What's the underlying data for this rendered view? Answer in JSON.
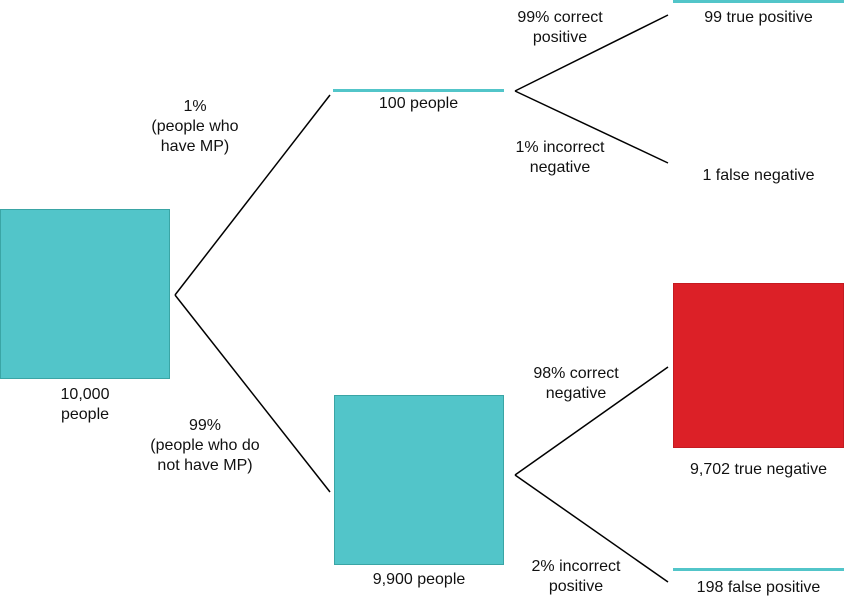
{
  "colors": {
    "teal": "#52c5c9",
    "red": "#dc2027",
    "line": "#000000"
  },
  "root": {
    "label": [
      "10,000",
      "people"
    ]
  },
  "branch_mp": {
    "edge_label": [
      "1%",
      "(people who",
      "have MP)"
    ],
    "node_label": "100 people",
    "positive": {
      "edge_label": [
        "99% correct",
        "positive"
      ],
      "result": "99 true positive"
    },
    "negative": {
      "edge_label": [
        "1% incorrect",
        "negative"
      ],
      "result": "1 false negative"
    }
  },
  "branch_no_mp": {
    "edge_label": [
      "99%",
      "(people who do",
      "not have MP)"
    ],
    "node_label": "9,900 people",
    "negative": {
      "edge_label": [
        "98% correct",
        "negative"
      ],
      "result": "9,702 true negative"
    },
    "positive": {
      "edge_label": [
        "2% incorrect",
        "positive"
      ],
      "result": "198 false positive"
    }
  }
}
